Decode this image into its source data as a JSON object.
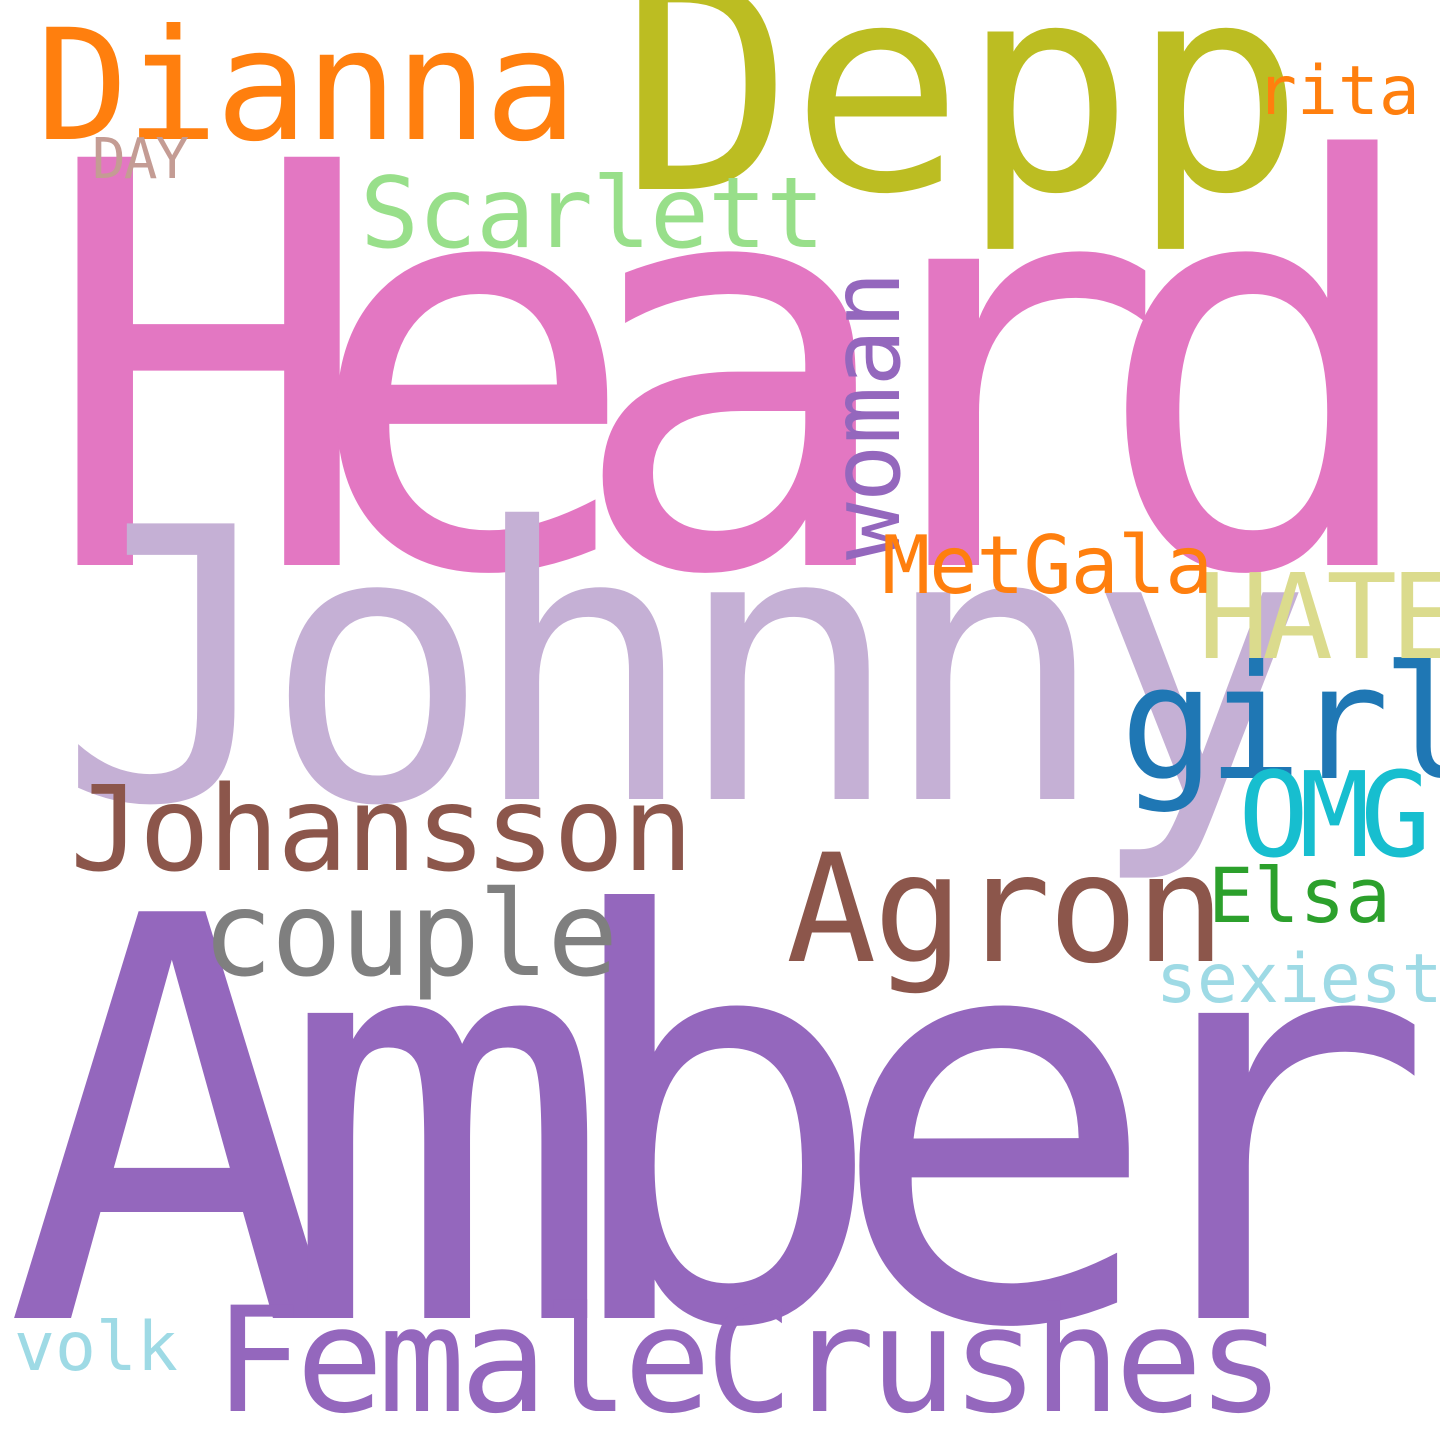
{
  "words": {
    "heard": {
      "text": "Heard",
      "color": "#e377c2"
    },
    "amber": {
      "text": "Amber",
      "color": "#9467bd"
    },
    "johnny": {
      "text": "Johnny",
      "color": "#c5b0d5"
    },
    "depp": {
      "text": "Depp",
      "color": "#bcbd22"
    },
    "dianna": {
      "text": "Dianna",
      "color": "#ff7f0e"
    },
    "female": {
      "text": "FemaleCrushes",
      "color": "#9467bd"
    },
    "johansson": {
      "text": "Johansson",
      "color": "#8c564b"
    },
    "agron": {
      "text": "Agron",
      "color": "#8c564b"
    },
    "couple": {
      "text": "couple",
      "color": "#7f7f7f"
    },
    "scarlett": {
      "text": "Scarlett",
      "color": "#98df8a"
    },
    "woman": {
      "text": "woman",
      "color": "#9467bd"
    },
    "girl": {
      "text": "girl",
      "color": "#1f77b4"
    },
    "hate": {
      "text": "HATE",
      "color": "#dbdb8d"
    },
    "omg": {
      "text": "OMG",
      "color": "#17becf"
    },
    "metgala": {
      "text": "MetGala",
      "color": "#ff7f0e"
    },
    "elsa": {
      "text": "Elsa",
      "color": "#2ca02c"
    },
    "sexiest": {
      "text": "sexiest",
      "color": "#9edae5"
    },
    "volk": {
      "text": "volk",
      "color": "#9edae5"
    },
    "rita": {
      "text": "rita",
      "color": "#ff7f0e"
    },
    "day": {
      "text": "DAY",
      "color": "#c49c94"
    }
  }
}
